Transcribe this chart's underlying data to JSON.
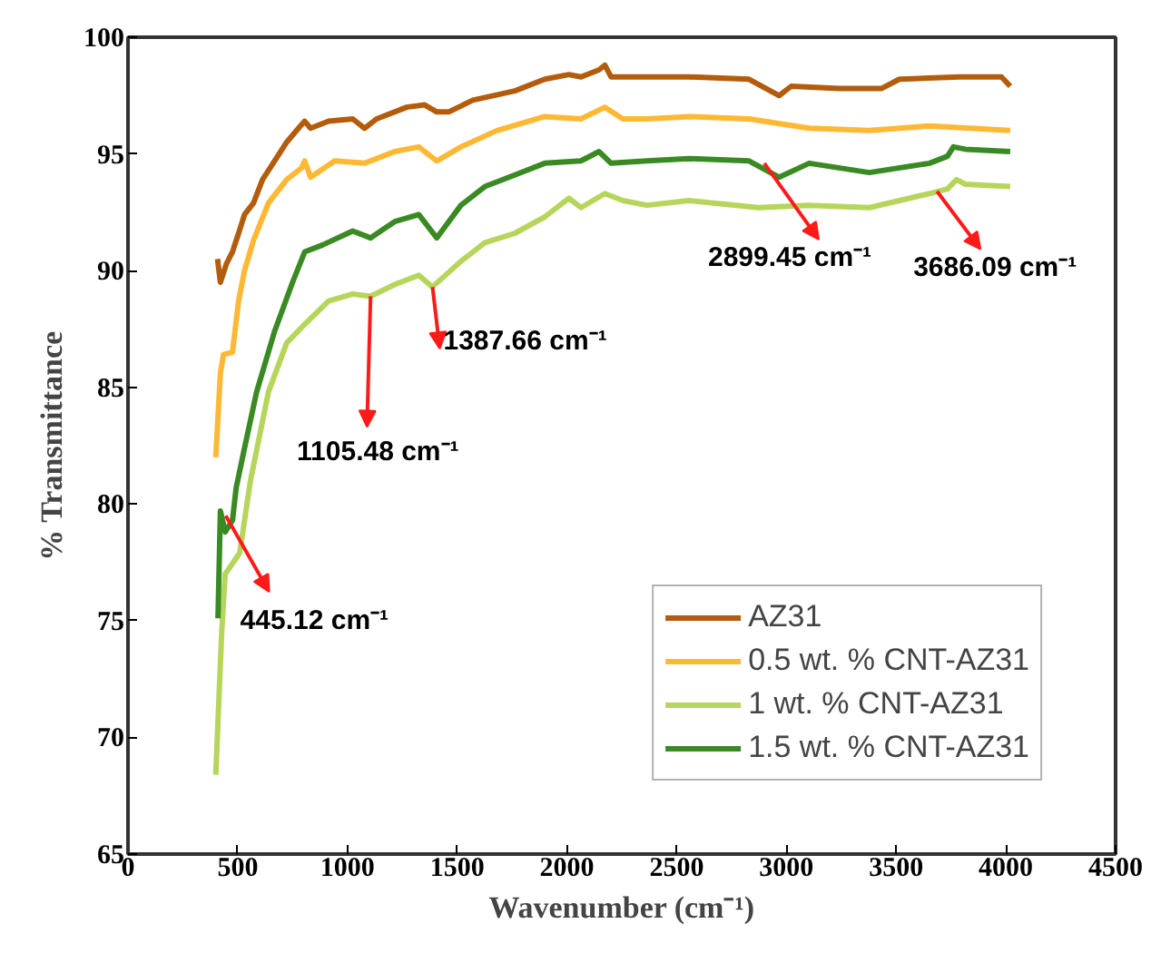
{
  "chart_data": {
    "type": "line",
    "xlabel": "Wavenumber (cm⁻¹)",
    "ylabel": "% Transmittance",
    "xlim": [
      0,
      4500
    ],
    "ylim": [
      65,
      100
    ],
    "xticks": [
      0,
      500,
      1000,
      1500,
      2000,
      2500,
      3000,
      3500,
      4000,
      4500
    ],
    "yticks": [
      65,
      70,
      75,
      80,
      85,
      90,
      95,
      100
    ],
    "grid": false,
    "legend": "bottom right",
    "marker": "none",
    "line_style": "solid",
    "series": [
      {
        "name": "AZ31",
        "color": "#b35c0c",
        "x": [
          408,
          421,
          449,
          476,
          504,
          531,
          572,
          613,
          668,
          723,
          777,
          805,
          832,
          914,
          1024,
          1078,
          1133,
          1270,
          1352,
          1407,
          1462,
          1571,
          1763,
          1899,
          2009,
          2064,
          2146,
          2173,
          2201,
          2365,
          2556,
          2830,
          2967,
          3022,
          3241,
          3432,
          3515,
          3788,
          3980,
          4020
        ],
        "values": [
          90.5,
          89.5,
          90.3,
          90.8,
          91.6,
          92.4,
          92.9,
          93.9,
          94.7,
          95.5,
          96.1,
          96.4,
          96.1,
          96.4,
          96.5,
          96.1,
          96.5,
          97.0,
          97.1,
          96.8,
          96.8,
          97.3,
          97.7,
          98.2,
          98.4,
          98.3,
          98.6,
          98.8,
          98.3,
          98.3,
          98.3,
          98.2,
          97.5,
          97.9,
          97.8,
          97.8,
          98.2,
          98.3,
          98.3,
          97.9
        ]
      },
      {
        "name": "0.5 wt. % CNT-AZ31",
        "color": "#ffb833",
        "x": [
          400,
          421,
          435,
          476,
          504,
          531,
          572,
          640,
          723,
          791,
          805,
          832,
          942,
          1078,
          1215,
          1325,
          1407,
          1517,
          1681,
          1899,
          2064,
          2173,
          2255,
          2365,
          2556,
          2830,
          3104,
          3378,
          3652,
          4020
        ],
        "values": [
          82.0,
          85.6,
          86.4,
          86.5,
          88.7,
          90.0,
          91.3,
          92.9,
          93.9,
          94.4,
          94.7,
          94.0,
          94.7,
          94.6,
          95.1,
          95.3,
          94.7,
          95.3,
          96.0,
          96.6,
          96.5,
          97.0,
          96.5,
          96.5,
          96.6,
          96.5,
          96.1,
          96.0,
          96.2,
          96.0
        ]
      },
      {
        "name": "1 wt. % CNT-AZ31",
        "color": "#b5d65a",
        "x": [
          400,
          427,
          443,
          509,
          558,
          640,
          723,
          805,
          914,
          1024,
          1105,
          1215,
          1325,
          1387,
          1517,
          1626,
          1763,
          1899,
          2009,
          2064,
          2173,
          2255,
          2365,
          2556,
          2871,
          3104,
          3378,
          3652,
          3734,
          3775,
          3816,
          4020
        ],
        "values": [
          68.4,
          74.5,
          77.0,
          77.9,
          81.0,
          84.8,
          86.9,
          87.7,
          88.7,
          89.0,
          88.9,
          89.4,
          89.8,
          89.3,
          90.4,
          91.2,
          91.6,
          92.3,
          93.1,
          92.7,
          93.3,
          93.0,
          92.8,
          93.0,
          92.7,
          92.8,
          92.7,
          93.3,
          93.5,
          93.9,
          93.7,
          93.6
        ]
      },
      {
        "name": "1.5 wt. % CNT-AZ31",
        "color": "#3a8a24",
        "x": [
          410,
          421,
          443,
          476,
          493,
          531,
          586,
          668,
          750,
          805,
          887,
          1024,
          1105,
          1215,
          1325,
          1407,
          1517,
          1626,
          1763,
          1899,
          2064,
          2146,
          2201,
          2365,
          2556,
          2830,
          2967,
          3104,
          3378,
          3652,
          3734,
          3761,
          3816,
          4020
        ],
        "values": [
          75.1,
          79.7,
          78.8,
          79.3,
          80.7,
          82.4,
          84.8,
          87.4,
          89.5,
          90.8,
          91.1,
          91.7,
          91.4,
          92.1,
          92.4,
          91.4,
          92.8,
          93.6,
          94.1,
          94.6,
          94.7,
          95.1,
          94.6,
          94.7,
          94.8,
          94.7,
          94.0,
          94.6,
          94.2,
          94.6,
          94.9,
          95.3,
          95.2,
          95.1
        ]
      }
    ],
    "annotations": [
      {
        "text": "445.12 cm⁻¹",
        "x": 445.12,
        "y": 79.5
      },
      {
        "text": "1105.48 cm⁻¹",
        "x": 1105.48,
        "y": 88.9
      },
      {
        "text": "1387.66 cm⁻¹",
        "x": 1387.66,
        "y": 89.3
      },
      {
        "text": "2899.45 cm⁻¹",
        "x": 2899.45,
        "y": 94.6
      },
      {
        "text": "3686.09 cm⁻¹",
        "x": 3686.09,
        "y": 93.4
      }
    ]
  }
}
